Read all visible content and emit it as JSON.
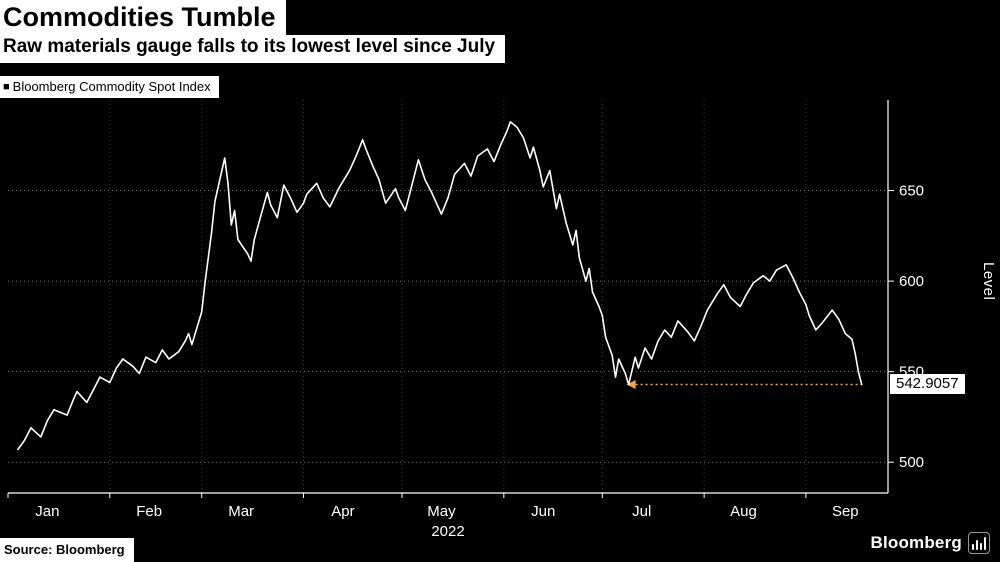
{
  "header": {
    "title": "Commodities Tumble",
    "subtitle": "Raw materials gauge falls to its lowest level since July",
    "legend": {
      "marker": "■",
      "label": "Bloomberg Commodity Spot Index"
    }
  },
  "footer": {
    "source": "Source: Bloomberg",
    "brand": "Bloomberg"
  },
  "chart_data": {
    "type": "line",
    "title": "Commodities Tumble",
    "subtitle": "Raw materials gauge falls to its lowest level since July",
    "legend_position": "top-left",
    "grid": {
      "horizontal": true,
      "vertical": true,
      "style": "dotted"
    },
    "x_axis": {
      "year_label": "2022",
      "months": [
        "Jan",
        "Feb",
        "Mar",
        "Apr",
        "May",
        "Jun",
        "Jul",
        "Aug",
        "Sep"
      ],
      "month_start_days": [
        0,
        31,
        59,
        90,
        120,
        151,
        181,
        212,
        243
      ],
      "xlim_days": [
        0,
        268
      ]
    },
    "y_axis": {
      "label": "Level",
      "ticks": [
        500,
        550,
        600,
        650
      ],
      "ylim": [
        483,
        700
      ],
      "side": "right"
    },
    "series": [
      {
        "name": "Bloomberg Commodity Spot Index",
        "color": "#ffffff",
        "x_day_of_year": [
          3,
          5,
          7,
          10,
          12,
          14,
          18,
          20,
          21,
          24,
          26,
          28,
          31,
          33,
          35,
          38,
          40,
          42,
          45,
          47,
          49,
          52,
          54,
          55,
          56,
          59,
          60,
          61,
          62,
          63,
          66,
          67,
          68,
          69,
          70,
          73,
          74,
          75,
          77,
          79,
          80,
          82,
          84,
          86,
          88,
          90,
          91,
          94,
          96,
          98,
          101,
          104,
          106,
          108,
          109,
          111,
          113,
          115,
          118,
          119,
          121,
          123,
          125,
          127,
          129,
          132,
          134,
          136,
          139,
          141,
          143,
          146,
          148,
          150,
          152,
          153,
          155,
          157,
          159,
          160,
          162,
          163,
          165,
          167,
          168,
          170,
          172,
          173,
          174,
          176,
          177,
          178,
          180,
          181,
          182,
          184,
          185,
          186,
          188,
          189,
          191,
          192,
          194,
          196,
          198,
          200,
          202,
          204,
          207,
          209,
          211,
          213,
          216,
          218,
          220,
          223,
          225,
          227,
          230,
          232,
          234,
          237,
          239,
          241,
          243,
          244,
          246,
          248,
          251,
          253,
          255,
          257,
          258,
          259,
          260
        ],
        "values": [
          507,
          512,
          519,
          514,
          523,
          529,
          526,
          535,
          539,
          533,
          540,
          547,
          544,
          552,
          557,
          553,
          549,
          558,
          555,
          562,
          557,
          561,
          567,
          571,
          565,
          583,
          599,
          613,
          627,
          644,
          668,
          654,
          631,
          639,
          623,
          615,
          611,
          623,
          636,
          649,
          642,
          635,
          653,
          646,
          638,
          643,
          648,
          654,
          646,
          641,
          652,
          661,
          669,
          678,
          673,
          664,
          656,
          643,
          651,
          646,
          639,
          653,
          667,
          656,
          649,
          637,
          646,
          659,
          665,
          658,
          669,
          673,
          666,
          675,
          683,
          688,
          685,
          679,
          668,
          674,
          661,
          652,
          661,
          640,
          648,
          632,
          620,
          628,
          613,
          600,
          607,
          594,
          586,
          581,
          569,
          559,
          547,
          557,
          549,
          542.9,
          558,
          552,
          563,
          557,
          567,
          573,
          569,
          578,
          572,
          567,
          575,
          584,
          593,
          598,
          591,
          586,
          593,
          599,
          603,
          600,
          606,
          609,
          602,
          594,
          587,
          581,
          573,
          577,
          584,
          579,
          571,
          568,
          560,
          550,
          542.9057
        ]
      }
    ],
    "annotations": {
      "reference_line": {
        "value": 542.9057,
        "from_day": 189,
        "to_day": 260,
        "color": "#f7a64a",
        "style": "dotted",
        "arrow": "left"
      },
      "value_label": {
        "text": "542.9057",
        "background": "#ffffff",
        "color": "#000000"
      }
    },
    "last_value": 542.9057
  }
}
